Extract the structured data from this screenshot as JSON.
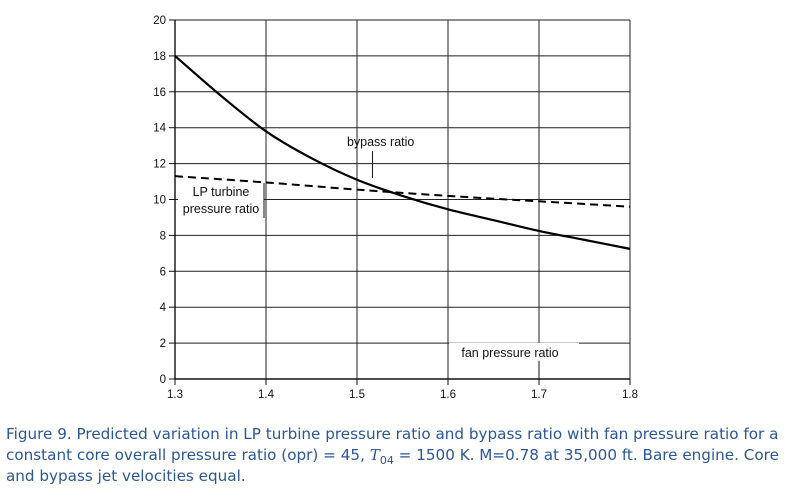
{
  "chart_data": {
    "type": "line",
    "xlabel": "fan pressure ratio",
    "ylabel": "",
    "xlim": [
      1.3,
      1.8
    ],
    "ylim": [
      0,
      20
    ],
    "xticks": [
      "1.3",
      "1.4",
      "1.5",
      "1.6",
      "1.7",
      "1.8"
    ],
    "yticks": [
      "0",
      "2",
      "4",
      "6",
      "8",
      "10",
      "12",
      "14",
      "16",
      "18",
      "20"
    ],
    "grid": true,
    "series": [
      {
        "name": "bypass ratio",
        "style": "solid",
        "x": [
          1.3,
          1.35,
          1.4,
          1.45,
          1.5,
          1.55,
          1.6,
          1.65,
          1.7,
          1.75,
          1.8
        ],
        "y": [
          18.0,
          15.8,
          13.8,
          12.3,
          11.1,
          10.2,
          9.45,
          8.85,
          8.25,
          7.75,
          7.25
        ]
      },
      {
        "name": "LP turbine pressure ratio",
        "style": "dashed",
        "x": [
          1.3,
          1.4,
          1.5,
          1.6,
          1.7,
          1.8
        ],
        "y": [
          11.3,
          10.95,
          10.55,
          10.2,
          9.9,
          9.6
        ]
      }
    ],
    "annotations": {
      "bypass": "bypass ratio",
      "lp_line1": "LP turbine",
      "lp_line2": "pressure ratio",
      "fan": "fan pressure ratio"
    }
  },
  "caption": {
    "part1": "Figure 9. Predicted variation in LP turbine pressure ratio and bypass ratio with fan pressure ratio for a constant core overall pressure ratio (opr) = 45, ",
    "t_symbol": "T",
    "t_sub": "04",
    "part2": " = 1500 K. M=0.78 at 35,000 ft. Bare engine. Core and bypass jet velocities equal."
  }
}
